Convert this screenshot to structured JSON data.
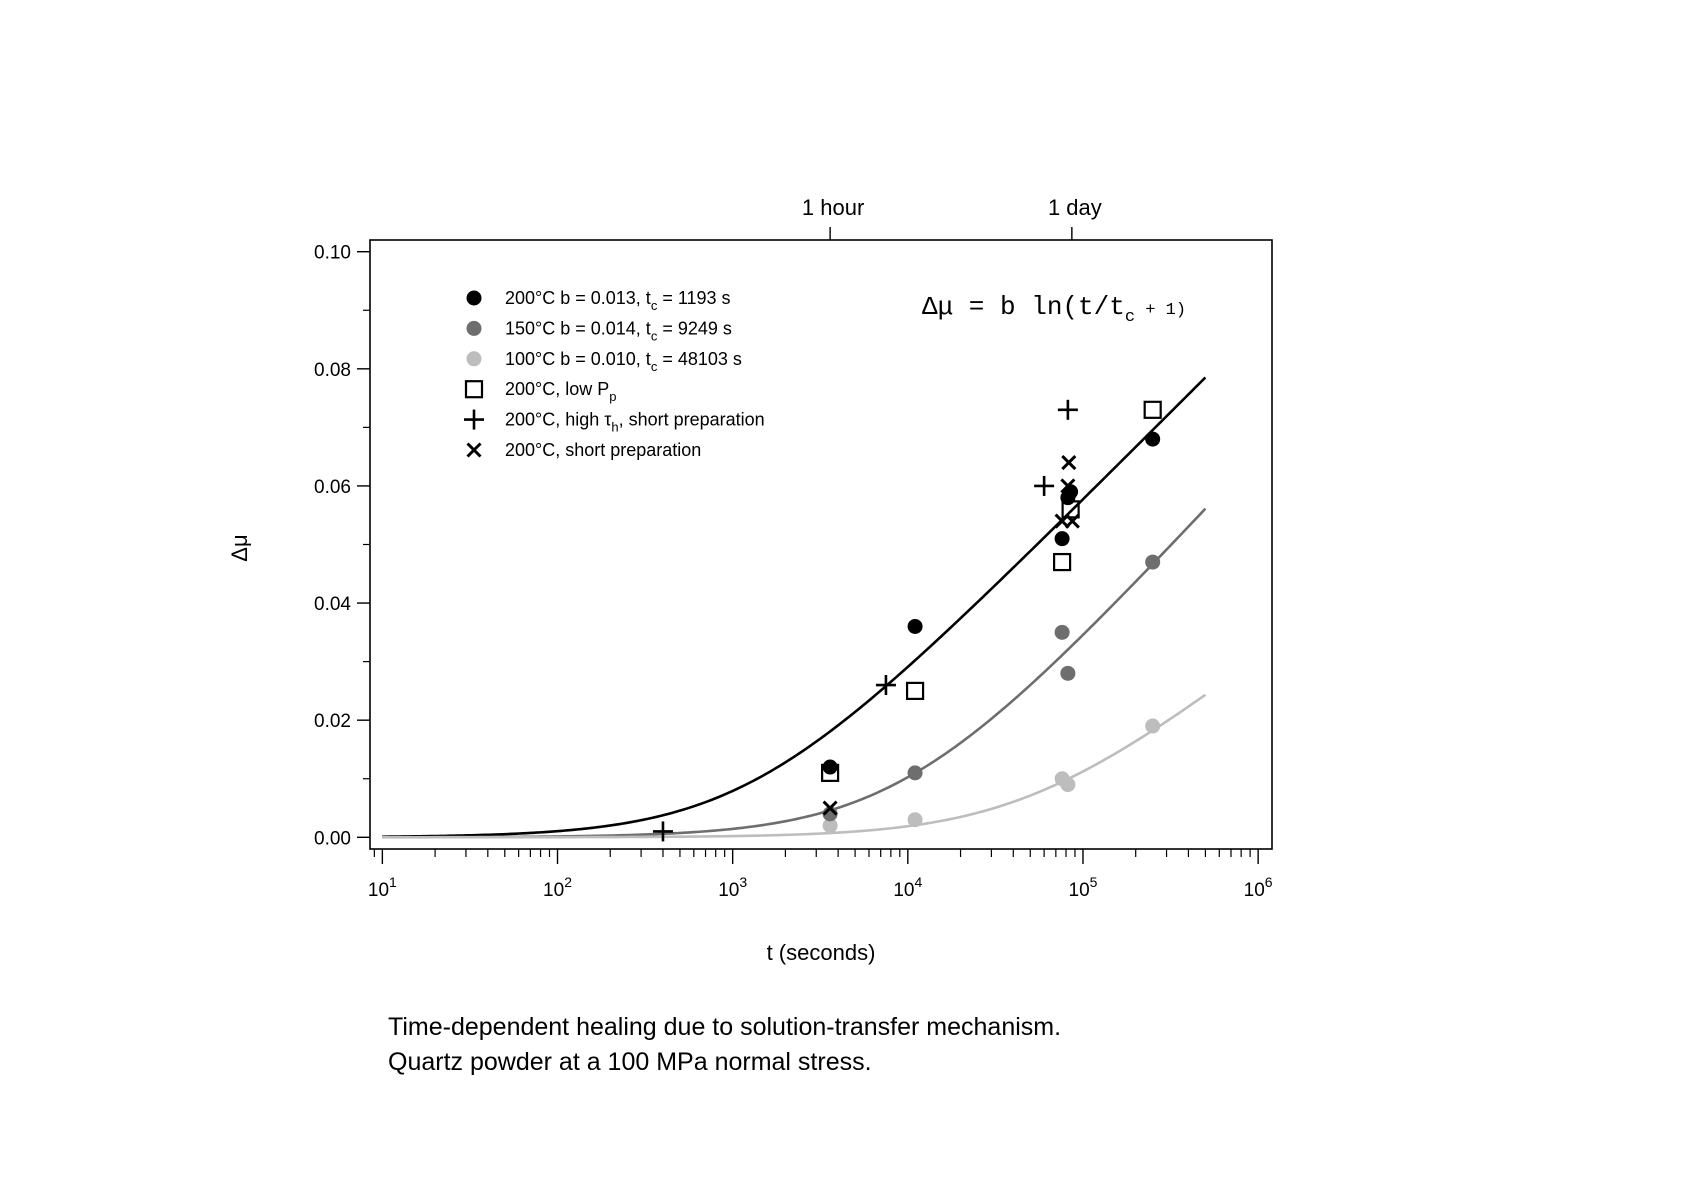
{
  "chart_data": {
    "type": "scatter",
    "x_axis": {
      "label": "t (seconds)",
      "scale": "log",
      "range": [
        8.5,
        1200000
      ],
      "tick_labels": [
        {
          "base": "10",
          "exp": "1",
          "value": 10
        },
        {
          "base": "10",
          "exp": "2",
          "value": 100
        },
        {
          "base": "10",
          "exp": "3",
          "value": 1000
        },
        {
          "base": "10",
          "exp": "4",
          "value": 10000
        },
        {
          "base": "10",
          "exp": "5",
          "value": 100000
        },
        {
          "base": "10",
          "exp": "6",
          "value": 1000000
        }
      ]
    },
    "top_axis": {
      "ticks": [
        {
          "label": "1 hour",
          "value": 3600
        },
        {
          "label": "1 day",
          "value": 86400
        }
      ]
    },
    "y_axis": {
      "label": "Δμ",
      "range": [
        -0.002,
        0.102
      ],
      "ticks": [
        {
          "label": "0.00",
          "value": 0.0
        },
        {
          "label": "0.02",
          "value": 0.02
        },
        {
          "label": "0.04",
          "value": 0.04
        },
        {
          "label": "0.06",
          "value": 0.06
        },
        {
          "label": "0.08",
          "value": 0.08
        },
        {
          "label": "0.10",
          "value": 0.1
        }
      ]
    },
    "formula": {
      "main": "Δμ = b ln(t/t",
      "sub": "c",
      "tail": " + 1)"
    },
    "legend_position": "top-left",
    "series": [
      {
        "marker": "filled-circle",
        "color": "#000000",
        "legend": {
          "pre": "200°C b = 0.013, t",
          "sub": "c",
          "post": " = 1193 s"
        },
        "points": [
          [
            3600,
            0.012
          ],
          [
            11000,
            0.036
          ],
          [
            76000,
            0.051
          ],
          [
            82000,
            0.058
          ],
          [
            85000,
            0.059
          ],
          [
            250000,
            0.068
          ]
        ],
        "fit": {
          "b": 0.013,
          "tc": 1193,
          "x_range": [
            10,
            500000
          ]
        }
      },
      {
        "marker": "filled-circle",
        "color": "#6e6e6e",
        "legend": {
          "pre": "150°C b = 0.014, t",
          "sub": "c",
          "post": " = 9249 s"
        },
        "points": [
          [
            3600,
            0.004
          ],
          [
            11000,
            0.011
          ],
          [
            76000,
            0.035
          ],
          [
            82000,
            0.028
          ],
          [
            250000,
            0.047
          ]
        ],
        "fit": {
          "b": 0.014,
          "tc": 9249,
          "x_range": [
            10,
            500000
          ]
        }
      },
      {
        "marker": "filled-circle",
        "color": "#bdbdbd",
        "legend": {
          "pre": "100°C b = 0.010, t",
          "sub": "c",
          "post": " = 48103 s"
        },
        "points": [
          [
            3600,
            0.002
          ],
          [
            11000,
            0.003
          ],
          [
            76000,
            0.01
          ],
          [
            82000,
            0.009
          ],
          [
            250000,
            0.019
          ]
        ],
        "fit": {
          "b": 0.01,
          "tc": 48103,
          "x_range": [
            10,
            500000
          ]
        }
      },
      {
        "marker": "open-square",
        "color": "#000000",
        "legend": {
          "pre": "200°C, low P",
          "sub": "p",
          "post": ""
        },
        "points": [
          [
            3600,
            0.011
          ],
          [
            11000,
            0.025
          ],
          [
            76000,
            0.047
          ],
          [
            85000,
            0.056
          ],
          [
            250000,
            0.073
          ]
        ]
      },
      {
        "marker": "plus",
        "color": "#000000",
        "legend": {
          "pre": "200°C, high τ",
          "sub": "h",
          "post": ", short preparation"
        },
        "points": [
          [
            400,
            0.001
          ],
          [
            7500,
            0.026
          ],
          [
            60000,
            0.06
          ],
          [
            82000,
            0.073
          ]
        ]
      },
      {
        "marker": "x",
        "color": "#000000",
        "legend": {
          "pre": "200°C, short preparation",
          "sub": "",
          "post": ""
        },
        "points": [
          [
            3600,
            0.005
          ],
          [
            76000,
            0.054
          ],
          [
            82000,
            0.06
          ],
          [
            83000,
            0.064
          ],
          [
            87000,
            0.054
          ]
        ]
      }
    ]
  },
  "caption": {
    "line1": "Time-dependent healing due to solution-transfer mechanism.",
    "line2": "Quartz powder at a 100 MPa normal stress."
  }
}
